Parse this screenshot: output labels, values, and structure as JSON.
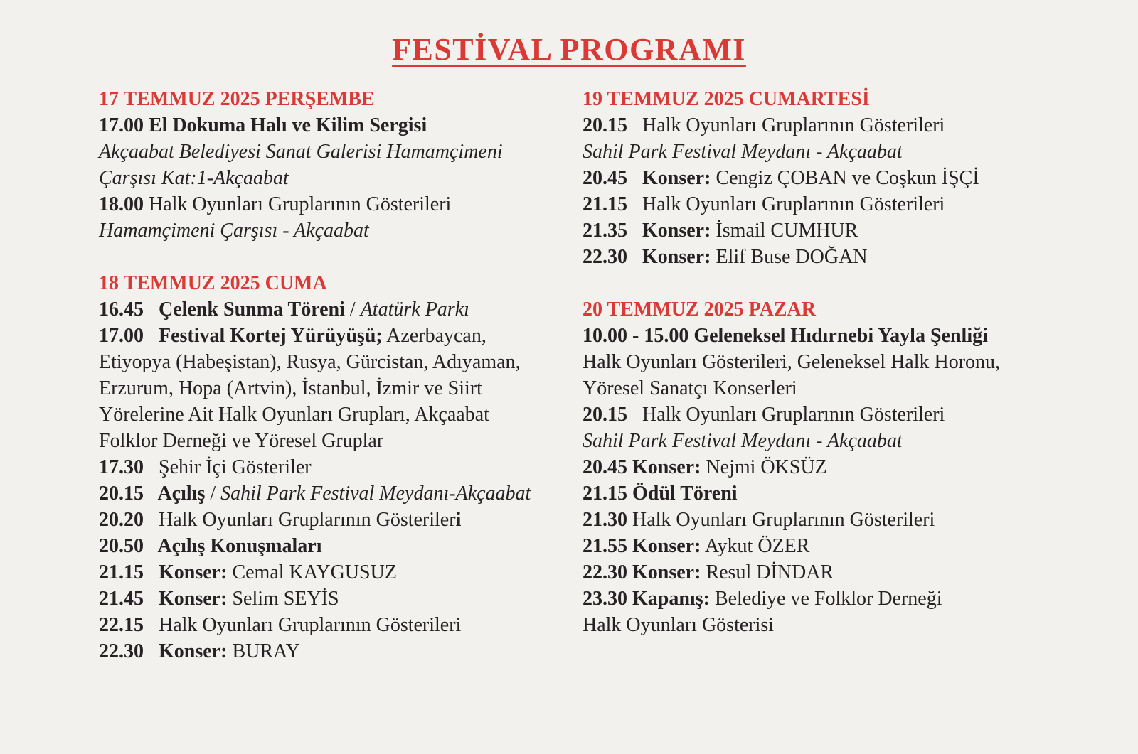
{
  "title": "FESTİVAL PROGRAMI",
  "colors": {
    "accent_red": "#d93a35",
    "text": "#262123",
    "background": "#f2f1ee"
  },
  "columns": [
    {
      "sections": [
        {
          "header": "17 TEMMUZ 2025 PERŞEMBE",
          "lines": [
            {
              "segments": [
                {
                  "t": "17.00 El Dokuma Halı ve Kilim Sergisi",
                  "s": "bold"
                }
              ]
            },
            {
              "segments": [
                {
                  "t": "Akçaabat Belediyesi Sanat Galerisi Hamamçimeni",
                  "s": "italic"
                }
              ]
            },
            {
              "segments": [
                {
                  "t": "Çarşısı Kat:1-Akçaabat",
                  "s": "italic"
                }
              ]
            },
            {
              "segments": [
                {
                  "t": "18.00 ",
                  "s": "bold"
                },
                {
                  "t": "Halk Oyunları Gruplarının Gösterileri",
                  "s": "regular"
                }
              ]
            },
            {
              "segments": [
                {
                  "t": "Hamamçimeni Çarşısı - Akçaabat",
                  "s": "italic"
                }
              ]
            }
          ]
        },
        {
          "header": "18 TEMMUZ 2025 CUMA",
          "lines": [
            {
              "segments": [
                {
                  "t": "16.45   Çelenk Sunma Töreni",
                  "s": "bold"
                },
                {
                  "t": " / ",
                  "s": "regular"
                },
                {
                  "t": "Atatürk Parkı",
                  "s": "italic"
                }
              ]
            },
            {
              "segments": [
                {
                  "t": "17.00   Festival Kortej Yürüyüşü;",
                  "s": "bold"
                },
                {
                  "t": " Azerbaycan,",
                  "s": "regular"
                }
              ]
            },
            {
              "segments": [
                {
                  "t": "Etiyopya (Habeşistan), Rusya, Gürcistan, Adıyaman,",
                  "s": "regular"
                }
              ]
            },
            {
              "segments": [
                {
                  "t": "Erzurum, Hopa (Artvin), İstanbul, İzmir ve Siirt",
                  "s": "regular"
                }
              ]
            },
            {
              "segments": [
                {
                  "t": "Yörelerine Ait Halk Oyunları Grupları, Akçaabat",
                  "s": "regular"
                }
              ]
            },
            {
              "segments": [
                {
                  "t": "Folklor Derneği ve Yöresel Gruplar",
                  "s": "regular"
                }
              ]
            },
            {
              "segments": [
                {
                  "t": "17.30   ",
                  "s": "bold"
                },
                {
                  "t": "Şehir İçi Gösteriler",
                  "s": "regular"
                }
              ]
            },
            {
              "segments": [
                {
                  "t": "20.15   Açılış",
                  "s": "bold"
                },
                {
                  "t": " / ",
                  "s": "regular"
                },
                {
                  "t": "Sahil Park Festival Meydanı-Akçaabat",
                  "s": "italic"
                }
              ]
            },
            {
              "segments": [
                {
                  "t": "20.20   ",
                  "s": "bold"
                },
                {
                  "t": "Halk Oyunları Gruplarının Gösteriler",
                  "s": "regular"
                },
                {
                  "t": "i",
                  "s": "bold"
                }
              ]
            },
            {
              "segments": [
                {
                  "t": "20.50   Açılış Konuşmaları",
                  "s": "bold"
                }
              ]
            },
            {
              "segments": [
                {
                  "t": "21.15   Konser:",
                  "s": "bold"
                },
                {
                  "t": " Cemal KAYGUSUZ",
                  "s": "regular"
                }
              ]
            },
            {
              "segments": [
                {
                  "t": "21.45   Konser:",
                  "s": "bold"
                },
                {
                  "t": " Selim SEYİS",
                  "s": "regular"
                }
              ]
            },
            {
              "segments": [
                {
                  "t": "22.15   ",
                  "s": "bold"
                },
                {
                  "t": "Halk Oyunları Gruplarının Gösterileri",
                  "s": "regular"
                }
              ]
            },
            {
              "segments": [
                {
                  "t": "22.30   Konser:",
                  "s": "bold"
                },
                {
                  "t": " BURAY",
                  "s": "regular"
                }
              ]
            }
          ]
        }
      ]
    },
    {
      "sections": [
        {
          "header": "19 TEMMUZ 2025 CUMARTESİ",
          "lines": [
            {
              "segments": [
                {
                  "t": "20.15   ",
                  "s": "bold"
                },
                {
                  "t": "Halk Oyunları Gruplarının Gösterileri",
                  "s": "regular"
                }
              ]
            },
            {
              "segments": [
                {
                  "t": "Sahil Park Festival Meydanı - Akçaabat",
                  "s": "italic"
                }
              ]
            },
            {
              "segments": [
                {
                  "t": "20.45   Konser:",
                  "s": "bold"
                },
                {
                  "t": " Cengiz ÇOBAN ve Coşkun İŞÇİ",
                  "s": "regular"
                }
              ]
            },
            {
              "segments": [
                {
                  "t": "21.15   ",
                  "s": "bold"
                },
                {
                  "t": "Halk Oyunları Gruplarının Gösterileri",
                  "s": "regular"
                }
              ]
            },
            {
              "segments": [
                {
                  "t": "21.35   Konser:",
                  "s": "bold"
                },
                {
                  "t": " İsmail CUMHUR",
                  "s": "regular"
                }
              ]
            },
            {
              "segments": [
                {
                  "t": "22.30   Konser:",
                  "s": "bold"
                },
                {
                  "t": " Elif Buse DOĞAN",
                  "s": "regular"
                }
              ]
            }
          ]
        },
        {
          "header": "20 TEMMUZ 2025 PAZAR",
          "lines": [
            {
              "segments": [
                {
                  "t": "10.00 - 15.00 Geleneksel Hıdırnebi Yayla Şenliği",
                  "s": "bold"
                }
              ]
            },
            {
              "segments": [
                {
                  "t": "Halk Oyunları Gösterileri, Geleneksel Halk Horonu,",
                  "s": "regular"
                }
              ]
            },
            {
              "segments": [
                {
                  "t": "Yöresel Sanatçı Konserleri",
                  "s": "regular"
                }
              ]
            },
            {
              "segments": [
                {
                  "t": "20.15   ",
                  "s": "bold"
                },
                {
                  "t": "Halk Oyunları Gruplarının Gösterileri",
                  "s": "regular"
                }
              ]
            },
            {
              "segments": [
                {
                  "t": "Sahil Park Festival Meydanı - Akçaabat",
                  "s": "italic"
                }
              ]
            },
            {
              "segments": [
                {
                  "t": "20.45 Konser:",
                  "s": "bold"
                },
                {
                  "t": " Nejmi ÖKSÜZ",
                  "s": "regular"
                }
              ]
            },
            {
              "segments": [
                {
                  "t": "21.15 Ödül Töreni",
                  "s": "bold"
                }
              ]
            },
            {
              "segments": [
                {
                  "t": "21.30 ",
                  "s": "bold"
                },
                {
                  "t": "Halk Oyunları Gruplarının Gösterileri",
                  "s": "regular"
                }
              ]
            },
            {
              "segments": [
                {
                  "t": "21.55 Konser:",
                  "s": "bold"
                },
                {
                  "t": " Aykut ÖZER",
                  "s": "regular"
                }
              ]
            },
            {
              "segments": [
                {
                  "t": "22.30 Konser:",
                  "s": "bold"
                },
                {
                  "t": " Resul DİNDAR",
                  "s": "regular"
                }
              ]
            },
            {
              "segments": [
                {
                  "t": "23.30 Kapanış:",
                  "s": "bold"
                },
                {
                  "t": " Belediye ve Folklor Derneği",
                  "s": "regular"
                }
              ]
            },
            {
              "segments": [
                {
                  "t": "Halk Oyunları Gösterisi",
                  "s": "regular"
                }
              ]
            }
          ]
        }
      ]
    }
  ]
}
